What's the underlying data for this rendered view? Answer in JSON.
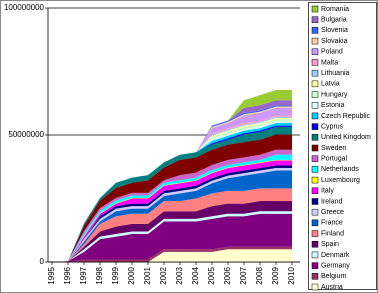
{
  "chart_data": {
    "type": "stacked_area",
    "categories": [
      "1995",
      "1996",
      "1997",
      "1998",
      "1999",
      "2000",
      "2001",
      "2002",
      "2003",
      "2004",
      "2005",
      "2006",
      "2007",
      "2008",
      "2009",
      "2010"
    ],
    "ylim": [
      0,
      100000000
    ],
    "yticks": [
      0,
      50000000,
      100000000
    ],
    "grid": true,
    "legend": "right",
    "series": [
      {
        "name": "Austria",
        "color": "#ffffcc",
        "values": [
          0,
          0,
          0,
          0,
          0,
          0,
          0,
          4000000.0,
          4000000.0,
          4000000.0,
          4000000.0,
          5000000.0,
          5000000.0,
          5000000.0,
          5000000.0,
          5000000.0
        ]
      },
      {
        "name": "Belgium",
        "color": "#993366",
        "values": [
          0,
          100000.0,
          1000000.0,
          1000000.0,
          1000000.0,
          1000000.0,
          1000000.0,
          1000000.0,
          1000000.0,
          1000000.0,
          1000000.0,
          1000000.0,
          1000000.0,
          1000000.0,
          1000000.0,
          1000000.0
        ]
      },
      {
        "name": "Germany",
        "color": "#800080",
        "values": [
          0,
          200000.0,
          3000000.0,
          8000000.0,
          9000000.0,
          10000000.0,
          10000000.0,
          11000000.0,
          11000000.0,
          11000000.0,
          12000000.0,
          12000000.0,
          12000000.0,
          13000000.0,
          13000000.0,
          13000000.0
        ]
      },
      {
        "name": "Denmark",
        "color": "#ccffff",
        "values": [
          0,
          0,
          1000000.0,
          1000000.0,
          1000000.0,
          1000000.0,
          1000000.0,
          1000000.0,
          1000000.0,
          1000000.0,
          1000000.0,
          1000000.0,
          1000000.0,
          1000000.0,
          1000000.0,
          1000000.0
        ]
      },
      {
        "name": "Spain",
        "color": "#660066",
        "values": [
          0,
          0,
          1000000.0,
          2000000.0,
          3000000.0,
          3000000.0,
          3000000.0,
          3000000.0,
          3000000.0,
          3000000.0,
          4000000.0,
          4000000.0,
          4000000.0,
          4000000.0,
          4000000.0,
          4000000.0
        ]
      },
      {
        "name": "Finland",
        "color": "#ff8080",
        "values": [
          0,
          0,
          1000000.0,
          3000000.0,
          4000000.0,
          4000000.0,
          4000000.0,
          4000000.0,
          4000000.0,
          5000000.0,
          5000000.0,
          5000000.0,
          5000000.0,
          5000000.0,
          5000000.0,
          5000000.0
        ]
      },
      {
        "name": "France",
        "color": "#0066cc",
        "values": [
          0,
          0,
          1000000.0,
          1000000.0,
          2000000.0,
          2000000.0,
          2000000.0,
          2000000.0,
          3000000.0,
          3000000.0,
          4000000.0,
          5000000.0,
          6000000.0,
          6000000.0,
          7000000.0,
          7000000.0
        ]
      },
      {
        "name": "Greece",
        "color": "#ccccff",
        "values": [
          0,
          0,
          1000000.0,
          1000000.0,
          1000000.0,
          1000000.0,
          1000000.0,
          1000000.0,
          1000000.0,
          1000000.0,
          1000000.0,
          1000000.0,
          1000000.0,
          1000000.0,
          1000000.0,
          1000000.0
        ]
      },
      {
        "name": "Ireland",
        "color": "#000080",
        "values": [
          0,
          0,
          0,
          1000000.0,
          1000000.0,
          1000000.0,
          1000000.0,
          1000000.0,
          1000000.0,
          1000000.0,
          1000000.0,
          1000000.0,
          1000000.0,
          1000000.0,
          1000000.0,
          1000000.0
        ]
      },
      {
        "name": "Italy",
        "color": "#ff00ff",
        "values": [
          0,
          0,
          1000000.0,
          1000000.0,
          1000000.0,
          2000000.0,
          2000000.0,
          2000000.0,
          2000000.0,
          2000000.0,
          2000000.0,
          2000000.0,
          2000000.0,
          2000000.0,
          2000000.0,
          2000000.0
        ]
      },
      {
        "name": "Luxembourg",
        "color": "#ffff00",
        "values": [
          0,
          0,
          200000.0,
          200000.0,
          200000.0,
          200000.0,
          200000.0,
          200000.0,
          200000.0,
          200000.0,
          200000.0,
          200000.0,
          200000.0,
          200000.0,
          200000.0,
          200000.0
        ]
      },
      {
        "name": "Netherlands",
        "color": "#00ffff",
        "values": [
          0,
          0,
          1000000.0,
          1000000.0,
          1000000.0,
          1000000.0,
          1000000.0,
          1000000.0,
          1000000.0,
          1000000.0,
          1000000.0,
          1000000.0,
          1000000.0,
          1000000.0,
          2000000.0,
          2000000.0
        ]
      },
      {
        "name": "Portugal",
        "color": "#cc66cc",
        "values": [
          0,
          0,
          1000000.0,
          1000000.0,
          1000000.0,
          1000000.0,
          1000000.0,
          1000000.0,
          2000000.0,
          2000000.0,
          2000000.0,
          2000000.0,
          2000000.0,
          2000000.0,
          2000000.0,
          2000000.0
        ]
      },
      {
        "name": "Sweden",
        "color": "#800000",
        "values": [
          0,
          0,
          2000000.0,
          3000000.0,
          4000000.0,
          4000000.0,
          5000000.0,
          5000000.0,
          6000000.0,
          6000000.0,
          6000000.0,
          6000000.0,
          6000000.0,
          6000000.0,
          6000000.0,
          6000000.0
        ]
      },
      {
        "name": "United Kingdom",
        "color": "#008080",
        "values": [
          0,
          0,
          1000000.0,
          1000000.0,
          2000000.0,
          2000000.0,
          2000000.0,
          2000000.0,
          2000000.0,
          2000000.0,
          2000000.0,
          2000000.0,
          3000000.0,
          3000000.0,
          3000000.0,
          3000000.0
        ]
      },
      {
        "name": "Cyprus",
        "color": "#0000ff",
        "values": [
          0,
          0,
          0,
          0,
          0,
          0,
          0,
          0,
          0,
          0,
          500000.0,
          500000.0,
          500000.0,
          500000.0,
          500000.0,
          500000.0
        ]
      },
      {
        "name": "Czech Republic",
        "color": "#00ccff",
        "values": [
          0,
          0,
          0,
          0,
          0,
          0,
          0,
          0,
          0,
          0,
          1000000.0,
          1000000.0,
          1000000.0,
          1000000.0,
          1000000.0,
          1000000.0
        ]
      },
      {
        "name": "Estonia",
        "color": "#e0ffff",
        "values": [
          0,
          0,
          0,
          0,
          0,
          0,
          0,
          0,
          0,
          0,
          500000.0,
          500000.0,
          500000.0,
          500000.0,
          500000.0,
          500000.0
        ]
      },
      {
        "name": "Hungary",
        "color": "#ccffcc",
        "values": [
          0,
          0,
          0,
          0,
          0,
          0,
          0,
          0,
          0,
          0,
          1000000.0,
          1000000.0,
          1000000.0,
          1000000.0,
          1000000.0,
          1000000.0
        ]
      },
      {
        "name": "Latvia",
        "color": "#ffff99",
        "values": [
          0,
          0,
          0,
          0,
          0,
          0,
          0,
          0,
          0,
          0,
          500000.0,
          500000.0,
          500000.0,
          500000.0,
          500000.0,
          500000.0
        ]
      },
      {
        "name": "Lithuania",
        "color": "#99ccff",
        "values": [
          0,
          0,
          0,
          0,
          0,
          0,
          0,
          0,
          0,
          0,
          500000.0,
          500000.0,
          500000.0,
          500000.0,
          500000.0,
          500000.0
        ]
      },
      {
        "name": "Malta",
        "color": "#ff99cc",
        "values": [
          0,
          0,
          0,
          0,
          0,
          0,
          0,
          0,
          0,
          0,
          500000.0,
          500000.0,
          500000.0,
          500000.0,
          500000.0,
          500000.0
        ]
      },
      {
        "name": "Poland",
        "color": "#cc99ff",
        "values": [
          0,
          0,
          0,
          0,
          0,
          0,
          0,
          0,
          0,
          0,
          2000000.0,
          2000000.0,
          3000000.0,
          3000000.0,
          3000000.0,
          3000000.0
        ]
      },
      {
        "name": "Slovakia",
        "color": "#ffcc99",
        "values": [
          0,
          0,
          0,
          0,
          0,
          0,
          0,
          0,
          0,
          0,
          500000.0,
          500000.0,
          500000.0,
          500000.0,
          500000.0,
          500000.0
        ]
      },
      {
        "name": "Slovenia",
        "color": "#3366ff",
        "values": [
          0,
          0,
          0,
          0,
          0,
          0,
          0,
          0,
          0,
          0,
          500000.0,
          500000.0,
          500000.0,
          500000.0,
          500000.0,
          500000.0
        ]
      },
      {
        "name": "Bulgaria",
        "color": "#9966cc",
        "values": [
          0,
          0,
          0,
          0,
          0,
          0,
          0,
          0,
          0,
          0,
          0,
          0,
          2000000.0,
          2000000.0,
          2000000.0,
          2000000.0
        ]
      },
      {
        "name": "Romania",
        "color": "#99cc33",
        "values": [
          0,
          0,
          0,
          0,
          0,
          0,
          0,
          0,
          0,
          0,
          0,
          0,
          3000000.0,
          4000000.0,
          4000000.0,
          4000000.0
        ]
      }
    ]
  }
}
